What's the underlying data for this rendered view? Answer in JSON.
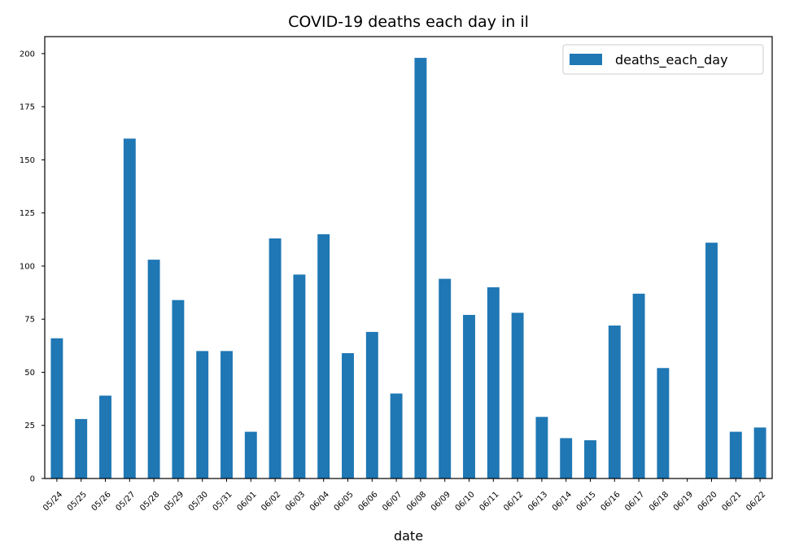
{
  "chart_data": {
    "type": "bar",
    "title": "COVID-19 deaths each day in il",
    "xlabel": "date",
    "ylabel": "",
    "categories": [
      "05/24",
      "05/25",
      "05/26",
      "05/27",
      "05/28",
      "05/29",
      "05/30",
      "05/31",
      "06/01",
      "06/02",
      "06/03",
      "06/04",
      "06/05",
      "06/06",
      "06/07",
      "06/08",
      "06/09",
      "06/10",
      "06/11",
      "06/12",
      "06/13",
      "06/14",
      "06/15",
      "06/16",
      "06/17",
      "06/18",
      "06/19",
      "06/20",
      "06/21",
      "06/22"
    ],
    "series": [
      {
        "name": "deaths_each_day",
        "color": "#1f77b4",
        "values": [
          66,
          28,
          39,
          160,
          103,
          84,
          60,
          60,
          22,
          113,
          96,
          115,
          59,
          69,
          40,
          198,
          94,
          77,
          90,
          78,
          29,
          19,
          18,
          72,
          87,
          52,
          0,
          111,
          22,
          24
        ]
      }
    ],
    "ylim": [
      0,
      208
    ],
    "yticks": [
      0,
      25,
      50,
      75,
      100,
      125,
      150,
      175,
      200
    ],
    "grid": false,
    "legend_position": "top-right"
  }
}
